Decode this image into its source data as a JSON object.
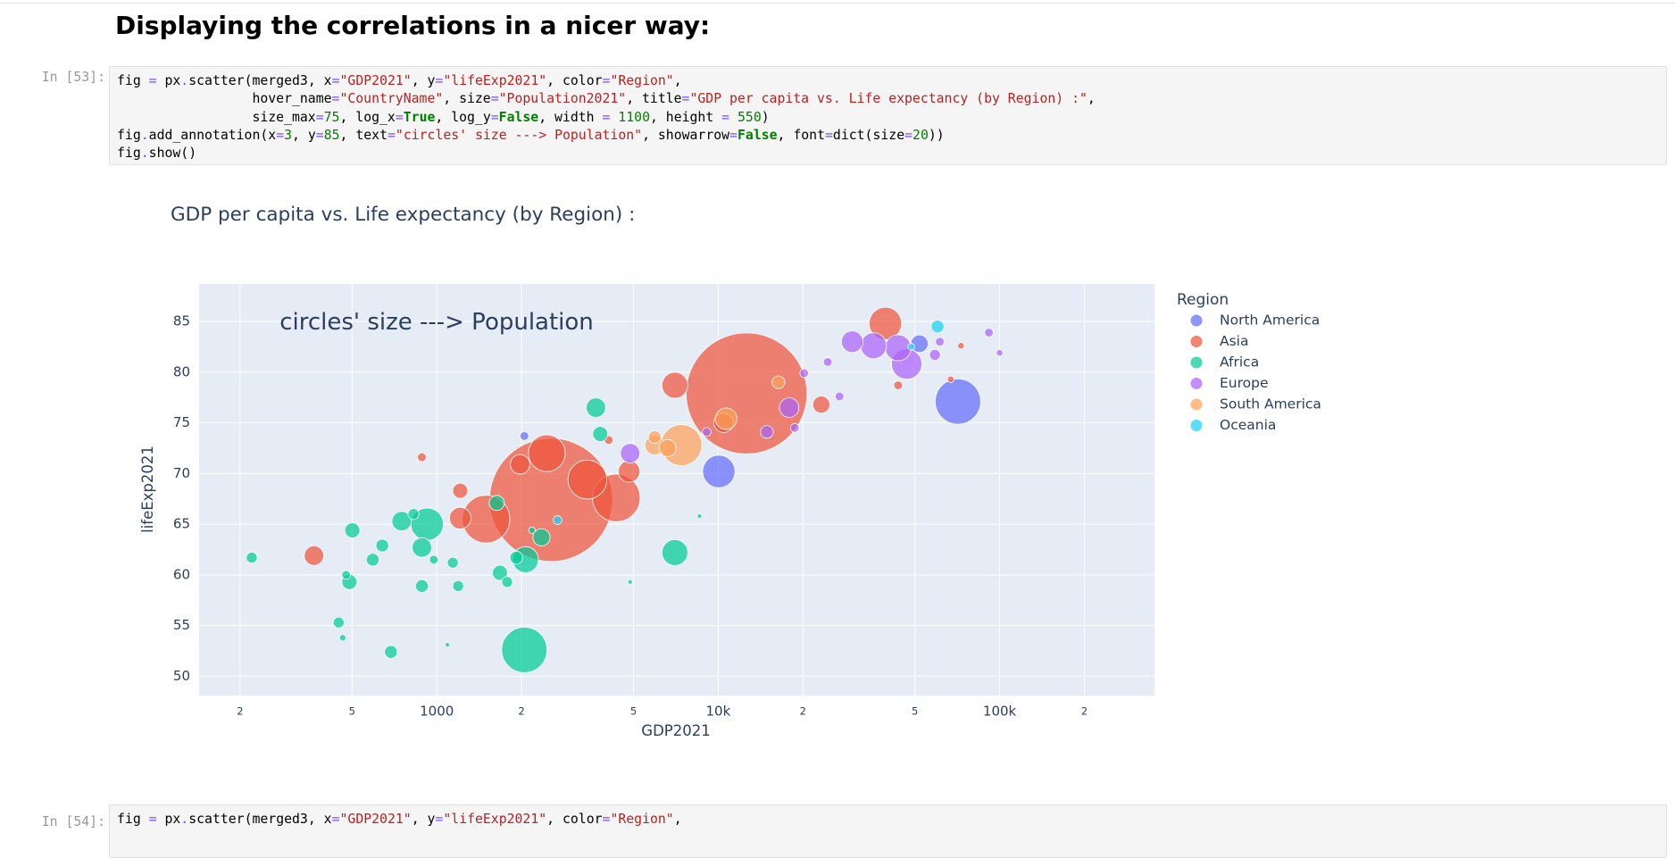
{
  "header": {
    "title": "Displaying the correlations in a nicer way:"
  },
  "cells": [
    {
      "prompt": "In [53]:",
      "code": [
        "fig = px.scatter(merged3, x=\"GDP2021\", y=\"lifeExp2021\", color=\"Region\",",
        "                 hover_name=\"CountryName\", size=\"Population2021\", title=\"GDP per capita vs. Life expectancy (by Region) :\",",
        "                 size_max=75, log_x=True, log_y=False, width = 1100, height = 550)",
        "fig.add_annotation(x=3, y=85, text=\"circles' size ---> Population\", showarrow=False, font=dict(size=20))",
        "fig.show()"
      ]
    },
    {
      "prompt": "In [54]:",
      "code": [
        "fig = px.scatter(merged3, x=\"GDP2021\", y=\"lifeExp2021\", color=\"Region\","
      ]
    }
  ],
  "chart_data": {
    "type": "scatter",
    "title": "GDP per capita vs. Life expectancy (by Region) :",
    "annotation": "circles' size ---> Population",
    "x_label": "GDP2021",
    "y_label": "lifeExp2021",
    "legend_title": "Region",
    "legend": "right",
    "log_x": true,
    "grid": true,
    "xlim": [
      143,
      355000
    ],
    "ylim": [
      48.1,
      88.7
    ],
    "xticks": [
      {
        "value": 200,
        "label": "2"
      },
      {
        "value": 500,
        "label": "5"
      },
      1000,
      {
        "value": 2000,
        "label": "2"
      },
      {
        "value": 5000,
        "label": "5"
      },
      {
        "value": 10000,
        "label": "10k"
      },
      {
        "value": 20000,
        "label": "2"
      },
      {
        "value": 50000,
        "label": "5"
      },
      {
        "value": 100000,
        "label": "100k"
      },
      {
        "value": 200000,
        "label": "2"
      }
    ],
    "yticks": [
      50,
      55,
      60,
      65,
      70,
      75,
      80,
      85
    ],
    "series": [
      {
        "name": "North America",
        "color": "#636efa",
        "x": [
          71100,
          10050,
          51900,
          2047
        ],
        "values": [
          77.1,
          70.2,
          82.8,
          73.7
        ],
        "sizes": [
          190000000,
          97000000,
          28000000,
          7000000
        ]
      },
      {
        "name": "Asia",
        "color": "#EF553B",
        "x": [
          2547,
          12610,
          4343,
          1496,
          3428,
          2460,
          39260,
          7015,
          1977,
          1211,
          1211,
          366,
          23240,
          10450,
          4822,
          43580,
          67000,
          72900,
          885,
          4084
        ],
        "values": [
          67.4,
          77.9,
          67.6,
          65.5,
          69.4,
          72.0,
          84.8,
          78.7,
          70.9,
          68.3,
          65.6,
          61.9,
          76.8,
          75.0,
          70.2,
          78.7,
          79.3,
          82.6,
          71.6,
          73.3
        ],
        "sizes": [
          1400000000,
          1350000000,
          209000000,
          209000000,
          140000000,
          125000000,
          97000000,
          62000000,
          35000000,
          21000000,
          43000000,
          35000000,
          27000000,
          35000000,
          43000000,
          7000000,
          4000000,
          4000000,
          7000000,
          7000000
        ]
      },
      {
        "name": "Africa",
        "color": "#00cc96",
        "x": [
          2047,
          924,
          3675,
          3808,
          885,
          750,
          2066,
          2355,
          7015,
          501,
          489,
          592,
          640,
          687,
          448,
          220,
          1140,
          1191,
          885,
          1676,
          1778,
          1915,
          1633,
          826,
          975,
          476,
          463,
          2178,
          4864,
          8586,
          1090
        ],
        "values": [
          52.6,
          65.0,
          76.5,
          73.9,
          62.7,
          65.3,
          61.5,
          63.7,
          62.2,
          64.4,
          59.3,
          61.5,
          62.9,
          52.4,
          55.3,
          61.7,
          61.2,
          58.9,
          58.9,
          60.2,
          59.3,
          61.7,
          67.1,
          66.0,
          61.5,
          60.0,
          53.8,
          64.4,
          59.3,
          65.8,
          53.1
        ],
        "sizes": [
          190000000,
          97000000,
          35000000,
          21000000,
          35000000,
          35000000,
          62000000,
          27000000,
          62000000,
          21000000,
          21000000,
          15000000,
          15000000,
          15000000,
          11000000,
          11000000,
          11000000,
          11000000,
          15000000,
          21000000,
          11000000,
          15000000,
          21000000,
          11000000,
          7000000,
          7000000,
          4000000,
          4000000,
          2000000,
          2000000,
          2000000
        ]
      },
      {
        "name": "Europe",
        "color": "#ab63fa",
        "x": [
          46750,
          43580,
          35650,
          29930,
          17870,
          4864,
          14890,
          58900,
          91600,
          100000,
          20210,
          24500,
          26980,
          18700,
          61300,
          9100
        ],
        "values": [
          80.8,
          82.4,
          82.6,
          83.0,
          76.5,
          72.0,
          74.1,
          81.7,
          83.9,
          81.9,
          79.9,
          81.0,
          77.6,
          74.5,
          83.0,
          74.1
        ],
        "sizes": [
          85000000,
          62000000,
          62000000,
          43000000,
          35000000,
          35000000,
          15000000,
          11000000,
          7000000,
          4000000,
          7000000,
          7000000,
          7000000,
          7000000,
          7000000,
          7000000
        ]
      },
      {
        "name": "South America",
        "color": "#FFA15A",
        "x": [
          7396,
          5946,
          10670,
          6606,
          16370,
          5946
        ],
        "values": [
          72.8,
          72.8,
          75.4,
          72.5,
          79.0,
          73.6
        ],
        "sizes": [
          155000000,
          35000000,
          43000000,
          27000000,
          15000000,
          15000000
        ]
      },
      {
        "name": "Oceania",
        "color": "#19d3f3",
        "x": [
          60200,
          48500,
          2685
        ],
        "values": [
          84.5,
          82.5,
          65.4
        ],
        "sizes": [
          15000000,
          4000000,
          7000000
        ]
      }
    ]
  }
}
